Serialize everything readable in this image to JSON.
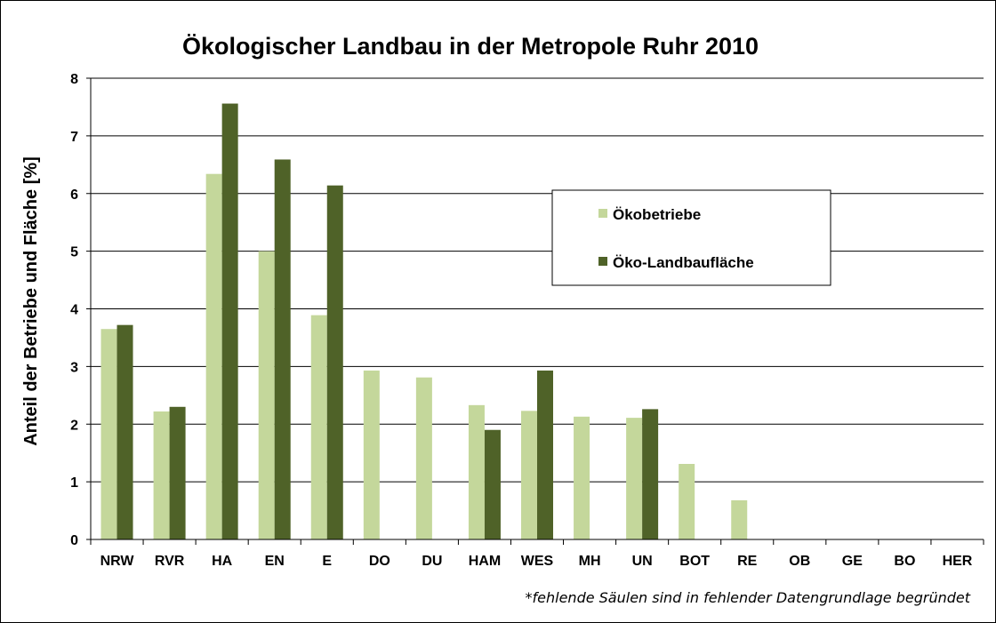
{
  "chart_data": {
    "type": "bar",
    "title": "Ökologischer Landbau in der Metropole Ruhr 2010",
    "ylabel": "Anteil  der Betriebe und Fläche [%]",
    "xlabel": "",
    "ylim": [
      0,
      8
    ],
    "yticks": [
      "0",
      "1",
      "2",
      "3",
      "4",
      "5",
      "6",
      "7",
      "8"
    ],
    "grid": true,
    "legend_position": "right",
    "categories": [
      "NRW",
      "RVR",
      "HA",
      "EN",
      "E",
      "DO",
      "DU",
      "HAM",
      "WES",
      "MH",
      "UN",
      "BOT",
      "RE",
      "OB",
      "GE",
      "BO",
      "HER"
    ],
    "series": [
      {
        "name": "Ökobetriebe",
        "color": "#c4d79b",
        "values": [
          3.65,
          2.22,
          6.34,
          5.0,
          3.89,
          2.93,
          2.81,
          2.33,
          2.23,
          2.13,
          2.11,
          1.31,
          0.68,
          null,
          null,
          null,
          null
        ]
      },
      {
        "name": "Öko-Landbaufläche",
        "color": "#4f6228",
        "values": [
          3.72,
          2.3,
          7.56,
          6.59,
          6.14,
          null,
          null,
          1.9,
          2.93,
          null,
          2.26,
          null,
          null,
          null,
          null,
          null,
          null
        ]
      }
    ],
    "footnote": "*fehlende Säulen sind in fehlender Datengrundlage begründet"
  }
}
